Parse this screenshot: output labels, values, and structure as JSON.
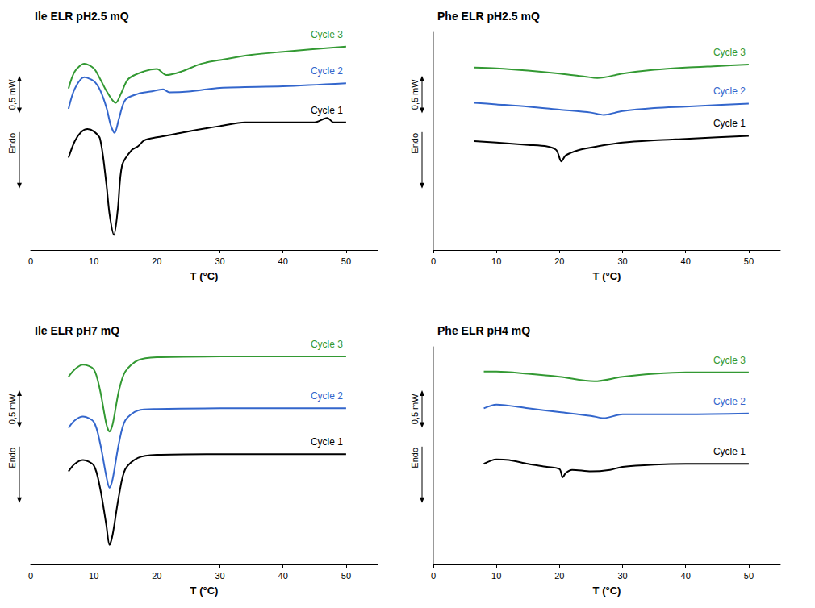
{
  "chart_data": [
    {
      "type": "line",
      "title": "Ile ELR pH2.5 mQ",
      "x_label": "T (°C)",
      "xlim": [
        0,
        55
      ],
      "xticks": [
        0,
        10,
        20,
        30,
        40,
        50
      ],
      "ylim": [
        0,
        2.9
      ],
      "tick_labels": "x",
      "scale_bar": {
        "value": 0.5,
        "label": "0,5 mW"
      },
      "annotations": [
        "Endo"
      ],
      "series": [
        {
          "name": "Cycle 1",
          "color": "#000000",
          "x": [
            6,
            7,
            8,
            9,
            10,
            11,
            12,
            12.5,
            13.2,
            13.8,
            14.5,
            16,
            17,
            18,
            20,
            22,
            25,
            30,
            34,
            40,
            45,
            47,
            48,
            50
          ],
          "values": [
            1.23,
            1.45,
            1.57,
            1.61,
            1.58,
            1.48,
            0.88,
            0.48,
            0.2,
            0.53,
            1.13,
            1.33,
            1.38,
            1.46,
            1.5,
            1.53,
            1.58,
            1.65,
            1.7,
            1.7,
            1.7,
            1.76,
            1.7,
            1.7
          ]
        },
        {
          "name": "Cycle 2",
          "color": "#3366cc",
          "x": [
            6,
            7,
            8.5,
            10,
            11,
            12,
            12.7,
            13.3,
            14,
            15,
            17,
            19,
            21,
            22,
            25,
            30,
            40,
            50
          ],
          "values": [
            1.88,
            2.15,
            2.3,
            2.25,
            2.13,
            1.9,
            1.66,
            1.56,
            1.75,
            2.0,
            2.08,
            2.11,
            2.14,
            2.1,
            2.11,
            2.16,
            2.18,
            2.22
          ]
        },
        {
          "name": "Cycle 3",
          "color": "#339933",
          "x": [
            6,
            7,
            8.5,
            10,
            11,
            12,
            13,
            13.5,
            14.3,
            15.5,
            18,
            20,
            21.5,
            24,
            27,
            30,
            35,
            40,
            50
          ],
          "values": [
            2.15,
            2.38,
            2.48,
            2.42,
            2.28,
            2.12,
            1.99,
            1.96,
            2.08,
            2.28,
            2.38,
            2.41,
            2.33,
            2.38,
            2.48,
            2.53,
            2.6,
            2.64,
            2.71
          ]
        }
      ]
    },
    {
      "type": "line",
      "title": "Phe ELR pH2.5 mQ",
      "x_label": "T (°C)",
      "xlim": [
        0,
        55
      ],
      "xticks": [
        0,
        10,
        20,
        30,
        40,
        50
      ],
      "ylim": [
        0,
        2.9
      ],
      "tick_labels": "x",
      "scale_bar": {
        "value": 0.5,
        "label": "0,5 mW"
      },
      "annotations": [
        "Endo"
      ],
      "series": [
        {
          "name": "Cycle 1",
          "color": "#000000",
          "x": [
            6.5,
            10,
            15,
            18,
            19.5,
            20.3,
            21,
            23,
            26,
            30,
            35,
            40,
            45,
            50
          ],
          "values": [
            1.45,
            1.43,
            1.4,
            1.38,
            1.33,
            1.18,
            1.26,
            1.33,
            1.38,
            1.43,
            1.46,
            1.48,
            1.5,
            1.52
          ]
        },
        {
          "name": "Cycle 2",
          "color": "#3366cc",
          "x": [
            6.5,
            10,
            15,
            20,
            25,
            27,
            30,
            35,
            40,
            45,
            50
          ],
          "values": [
            1.96,
            1.94,
            1.91,
            1.87,
            1.83,
            1.8,
            1.85,
            1.89,
            1.91,
            1.93,
            1.95
          ]
        },
        {
          "name": "Cycle 3",
          "color": "#339933",
          "x": [
            6.5,
            10,
            15,
            20,
            24,
            26,
            30,
            35,
            40,
            45,
            50
          ],
          "values": [
            2.43,
            2.42,
            2.39,
            2.35,
            2.31,
            2.29,
            2.35,
            2.4,
            2.43,
            2.45,
            2.47
          ]
        }
      ]
    },
    {
      "type": "line",
      "title": "Ile ELR pH7 mQ",
      "x_label": "T (°C)",
      "xlim": [
        0,
        55
      ],
      "xticks": [
        0,
        10,
        20,
        30,
        40,
        50
      ],
      "ylim": [
        0,
        2.9
      ],
      "tick_labels": "x",
      "scale_bar": {
        "value": 0.5,
        "label": "0,5 mW"
      },
      "annotations": [
        "Endo"
      ],
      "series": [
        {
          "name": "Cycle 1",
          "color": "#000000",
          "x": [
            6,
            7,
            8.3,
            10,
            11,
            12,
            12.5,
            13,
            14,
            15,
            17,
            20,
            30,
            50
          ],
          "values": [
            1.24,
            1.34,
            1.39,
            1.32,
            1.02,
            0.52,
            0.26,
            0.4,
            0.92,
            1.27,
            1.42,
            1.46,
            1.47,
            1.47
          ]
        },
        {
          "name": "Cycle 2",
          "color": "#3366cc",
          "x": [
            6,
            7,
            8.3,
            10,
            11,
            12,
            12.5,
            13,
            14,
            15,
            17,
            20,
            30,
            50
          ],
          "values": [
            1.82,
            1.92,
            1.97,
            1.9,
            1.62,
            1.17,
            1.02,
            1.14,
            1.62,
            1.92,
            2.05,
            2.07,
            2.08,
            2.08
          ]
        },
        {
          "name": "Cycle 3",
          "color": "#339933",
          "x": [
            6,
            7,
            8.3,
            10,
            11,
            12,
            12.5,
            13,
            14,
            15,
            17,
            20,
            30,
            50
          ],
          "values": [
            2.5,
            2.6,
            2.66,
            2.6,
            2.32,
            1.87,
            1.77,
            1.87,
            2.32,
            2.57,
            2.72,
            2.76,
            2.77,
            2.77
          ]
        }
      ]
    },
    {
      "type": "line",
      "title": "Phe ELR pH4 mQ",
      "x_label": "T (°C)",
      "xlim": [
        0,
        55
      ],
      "xticks": [
        0,
        10,
        20,
        30,
        40,
        50
      ],
      "ylim": [
        0,
        2.9
      ],
      "tick_labels": "x",
      "scale_bar": {
        "value": 0.5,
        "label": "0,5 mW"
      },
      "annotations": [
        "Endo"
      ],
      "series": [
        {
          "name": "Cycle 1",
          "color": "#000000",
          "x": [
            8,
            10,
            12,
            15,
            18,
            20,
            20.5,
            21,
            22,
            25,
            28,
            30,
            35,
            40,
            50
          ],
          "values": [
            1.34,
            1.4,
            1.39,
            1.34,
            1.3,
            1.27,
            1.16,
            1.22,
            1.26,
            1.24,
            1.26,
            1.3,
            1.33,
            1.34,
            1.34
          ]
        },
        {
          "name": "Cycle 2",
          "color": "#3366cc",
          "x": [
            8,
            10,
            15,
            20,
            25,
            27,
            30,
            35,
            40,
            50
          ],
          "values": [
            2.08,
            2.13,
            2.08,
            2.03,
            1.98,
            1.95,
            2.0,
            2.0,
            2.0,
            2.01
          ]
        },
        {
          "name": "Cycle 3",
          "color": "#339933",
          "x": [
            8,
            10,
            15,
            20,
            25.5,
            30,
            35,
            40,
            50
          ],
          "values": [
            2.57,
            2.57,
            2.54,
            2.5,
            2.44,
            2.5,
            2.54,
            2.56,
            2.56
          ]
        }
      ]
    }
  ]
}
